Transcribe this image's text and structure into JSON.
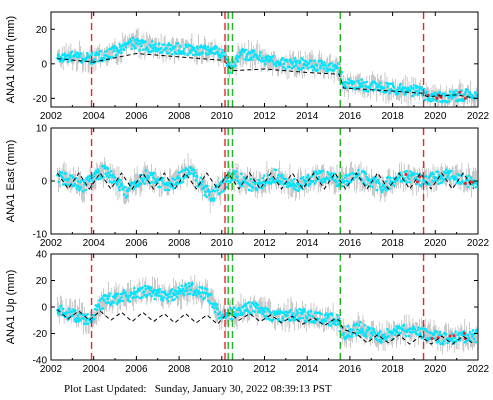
{
  "footer": {
    "label": "Plot Last Updated:",
    "timestamp": "Sunday, January 30, 2022 08:39:13 PST"
  },
  "colors": {
    "observations": "#00e5ff",
    "error_bars": "#b4b4b4",
    "outliers": "#e8242c",
    "model": "#000000",
    "equipment_change": "#e8242c",
    "earthquake": "#22b422"
  },
  "chart_data": [
    {
      "type": "scatter",
      "station": "ANA1",
      "component": "North",
      "ylabel": "ANA1 North (mm)",
      "xlim": [
        2002,
        2022
      ],
      "ylim": [
        -25,
        30
      ],
      "xticks": [
        "2002",
        "2004",
        "2006",
        "2008",
        "2010",
        "2012",
        "2014",
        "2016",
        "2018",
        "2020",
        "2022"
      ],
      "yticks": [
        "-20",
        "0",
        "20"
      ],
      "grid": false,
      "vlines": [
        {
          "x": 2003.9,
          "style": "red-dashed"
        },
        {
          "x": 2010.15,
          "style": "red-dashed"
        },
        {
          "x": 2010.3,
          "style": "green-dashed"
        },
        {
          "x": 2010.5,
          "style": "green-dashed"
        },
        {
          "x": 2015.55,
          "style": "green-dashed"
        },
        {
          "x": 2019.45,
          "style": "red-dashed"
        }
      ],
      "series": [
        {
          "role": "daily positions (cyan) with error bars (gray)",
          "x": [
            2002.3,
            2003,
            2004,
            2005,
            2005.8,
            2006.5,
            2007.5,
            2008.5,
            2009.5,
            2010.1,
            2010.4,
            2011,
            2012,
            2013,
            2014,
            2015,
            2015.5,
            2015.7,
            2016.5,
            2017.5,
            2018.5,
            2019.4,
            2019.6,
            2020.5,
            2021.5,
            2021.9
          ],
          "y": [
            3,
            4,
            3,
            7,
            12,
            10,
            9,
            8,
            8,
            6,
            -2,
            6,
            3,
            0,
            0,
            -2,
            -3,
            -11,
            -12,
            -14,
            -15,
            -16,
            -19,
            -19,
            -18,
            -20
          ]
        },
        {
          "role": "model (black dashed)",
          "x": [
            2002.3,
            2004,
            2006,
            2008,
            2010.1,
            2010.5,
            2012,
            2014,
            2015.5,
            2015.7,
            2017,
            2019.4,
            2019.6,
            2021,
            2021.9
          ],
          "y": [
            3,
            1,
            6,
            4,
            2,
            -4,
            -3,
            -5,
            -6,
            -14,
            -15,
            -17,
            -19,
            -18,
            -20
          ]
        }
      ]
    },
    {
      "type": "scatter",
      "station": "ANA1",
      "component": "East",
      "ylabel": "ANA1 East (mm)",
      "xlim": [
        2002,
        2022
      ],
      "ylim": [
        -10,
        10
      ],
      "xticks": [
        "2002",
        "2004",
        "2006",
        "2008",
        "2010",
        "2012",
        "2014",
        "2016",
        "2018",
        "2020",
        "2022"
      ],
      "yticks": [
        "-10",
        "0",
        "10"
      ],
      "grid": false,
      "vlines": [
        {
          "x": 2003.9,
          "style": "red-dashed"
        },
        {
          "x": 2010.15,
          "style": "red-dashed"
        },
        {
          "x": 2010.3,
          "style": "green-dashed"
        },
        {
          "x": 2010.5,
          "style": "green-dashed"
        },
        {
          "x": 2015.55,
          "style": "green-dashed"
        },
        {
          "x": 2019.45,
          "style": "red-dashed"
        }
      ],
      "series": [
        {
          "role": "daily positions (cyan) with error bars (gray)",
          "x": [
            2002.3,
            2003.5,
            2004.5,
            2005.5,
            2006.5,
            2007.5,
            2008.5,
            2009.5,
            2010.5,
            2011.5,
            2012.5,
            2013.5,
            2014.5,
            2015.5,
            2016.5,
            2017.5,
            2018.5,
            2019.5,
            2020.5,
            2021.5
          ],
          "y": [
            1,
            -1,
            2,
            -2,
            1,
            -1,
            2,
            -3,
            1,
            -1,
            1,
            -1,
            1,
            0,
            1,
            -1,
            1,
            0,
            1,
            0
          ]
        },
        {
          "role": "model (black dashed), annual cycle amplitude ~1.5 mm",
          "x": [
            2002.3,
            2002.8,
            2003.3,
            2003.8,
            2004.3,
            2004.8,
            2005.3,
            2005.8,
            2006.3,
            2006.8,
            2007.3,
            2007.8,
            2008.3,
            2008.8,
            2009.3,
            2009.8,
            2010.3,
            2010.8,
            2011.3,
            2011.8,
            2012.3,
            2012.8,
            2013.3,
            2013.8,
            2014.3,
            2014.8,
            2015.3,
            2015.8,
            2016.3,
            2016.8,
            2017.3,
            2017.8,
            2018.3,
            2018.8,
            2019.3,
            2019.8,
            2020.3,
            2020.8,
            2021.3,
            2021.8
          ],
          "y": [
            1.5,
            -1.5,
            1.5,
            -1.5,
            1.5,
            -1.5,
            1.5,
            -1.5,
            1.5,
            -1.5,
            1.5,
            -1.5,
            1.5,
            -1.5,
            1.5,
            -1.5,
            1.5,
            -1.5,
            1.5,
            -1.5,
            1.5,
            -1.5,
            1.5,
            -1.5,
            1.5,
            -1.5,
            1.5,
            -1.5,
            1.5,
            -1.5,
            1.5,
            -1.5,
            1.5,
            -1.5,
            1.5,
            -1.5,
            1.5,
            -1.5,
            1.5,
            -1.5
          ]
        }
      ]
    },
    {
      "type": "scatter",
      "station": "ANA1",
      "component": "Up",
      "ylabel": "ANA1 Up (mm)",
      "xlim": [
        2002,
        2022
      ],
      "ylim": [
        -40,
        40
      ],
      "xticks": [
        "2002",
        "2004",
        "2006",
        "2008",
        "2010",
        "2012",
        "2014",
        "2016",
        "2018",
        "2020",
        "2022"
      ],
      "yticks": [
        "-40",
        "-20",
        "0",
        "20",
        "40"
      ],
      "grid": false,
      "vlines": [
        {
          "x": 2003.9,
          "style": "red-dashed"
        },
        {
          "x": 2010.15,
          "style": "red-dashed"
        },
        {
          "x": 2010.3,
          "style": "green-dashed"
        },
        {
          "x": 2010.5,
          "style": "green-dashed"
        },
        {
          "x": 2015.55,
          "style": "green-dashed"
        },
        {
          "x": 2019.45,
          "style": "red-dashed"
        }
      ],
      "series": [
        {
          "role": "daily positions (cyan) with error bars (gray)",
          "x": [
            2002.3,
            2003,
            2003.8,
            2004.5,
            2005.5,
            2006.5,
            2007.5,
            2008.5,
            2009.3,
            2010,
            2010.5,
            2011.5,
            2012.5,
            2013.5,
            2014.5,
            2015.4,
            2015.7,
            2016.5,
            2017.5,
            2018.5,
            2019.5,
            2020.5,
            2021.5
          ],
          "y": [
            -3,
            -6,
            -10,
            5,
            8,
            12,
            8,
            14,
            10,
            -8,
            -5,
            0,
            -8,
            -5,
            -8,
            -10,
            -20,
            -16,
            -22,
            -18,
            -20,
            -24,
            -22
          ]
        },
        {
          "role": "model (black dashed), annual cycle on trend",
          "x": [
            2002.3,
            2002.8,
            2003.3,
            2003.8,
            2004.3,
            2004.8,
            2005.3,
            2005.8,
            2006.3,
            2006.8,
            2007.3,
            2007.8,
            2008.3,
            2008.8,
            2009.3,
            2009.8,
            2010.3,
            2010.8,
            2011.3,
            2011.8,
            2012.3,
            2012.8,
            2013.3,
            2013.8,
            2014.3,
            2014.8,
            2015.3,
            2015.5,
            2015.7,
            2016.3,
            2016.8,
            2017.3,
            2017.8,
            2018.3,
            2018.8,
            2019.3,
            2019.8,
            2020.3,
            2020.8,
            2021.3,
            2021.8
          ],
          "y": [
            -2,
            -9,
            -3,
            -10,
            -3,
            -10,
            -4,
            -11,
            -4,
            -11,
            -5,
            -12,
            -5,
            -12,
            -6,
            -13,
            -4,
            -10,
            -5,
            -11,
            -6,
            -12,
            -7,
            -13,
            -8,
            -14,
            -9,
            -10,
            -17,
            -20,
            -27,
            -21,
            -27,
            -21,
            -28,
            -22,
            -28,
            -22,
            -28,
            -22,
            -28
          ]
        }
      ]
    }
  ]
}
